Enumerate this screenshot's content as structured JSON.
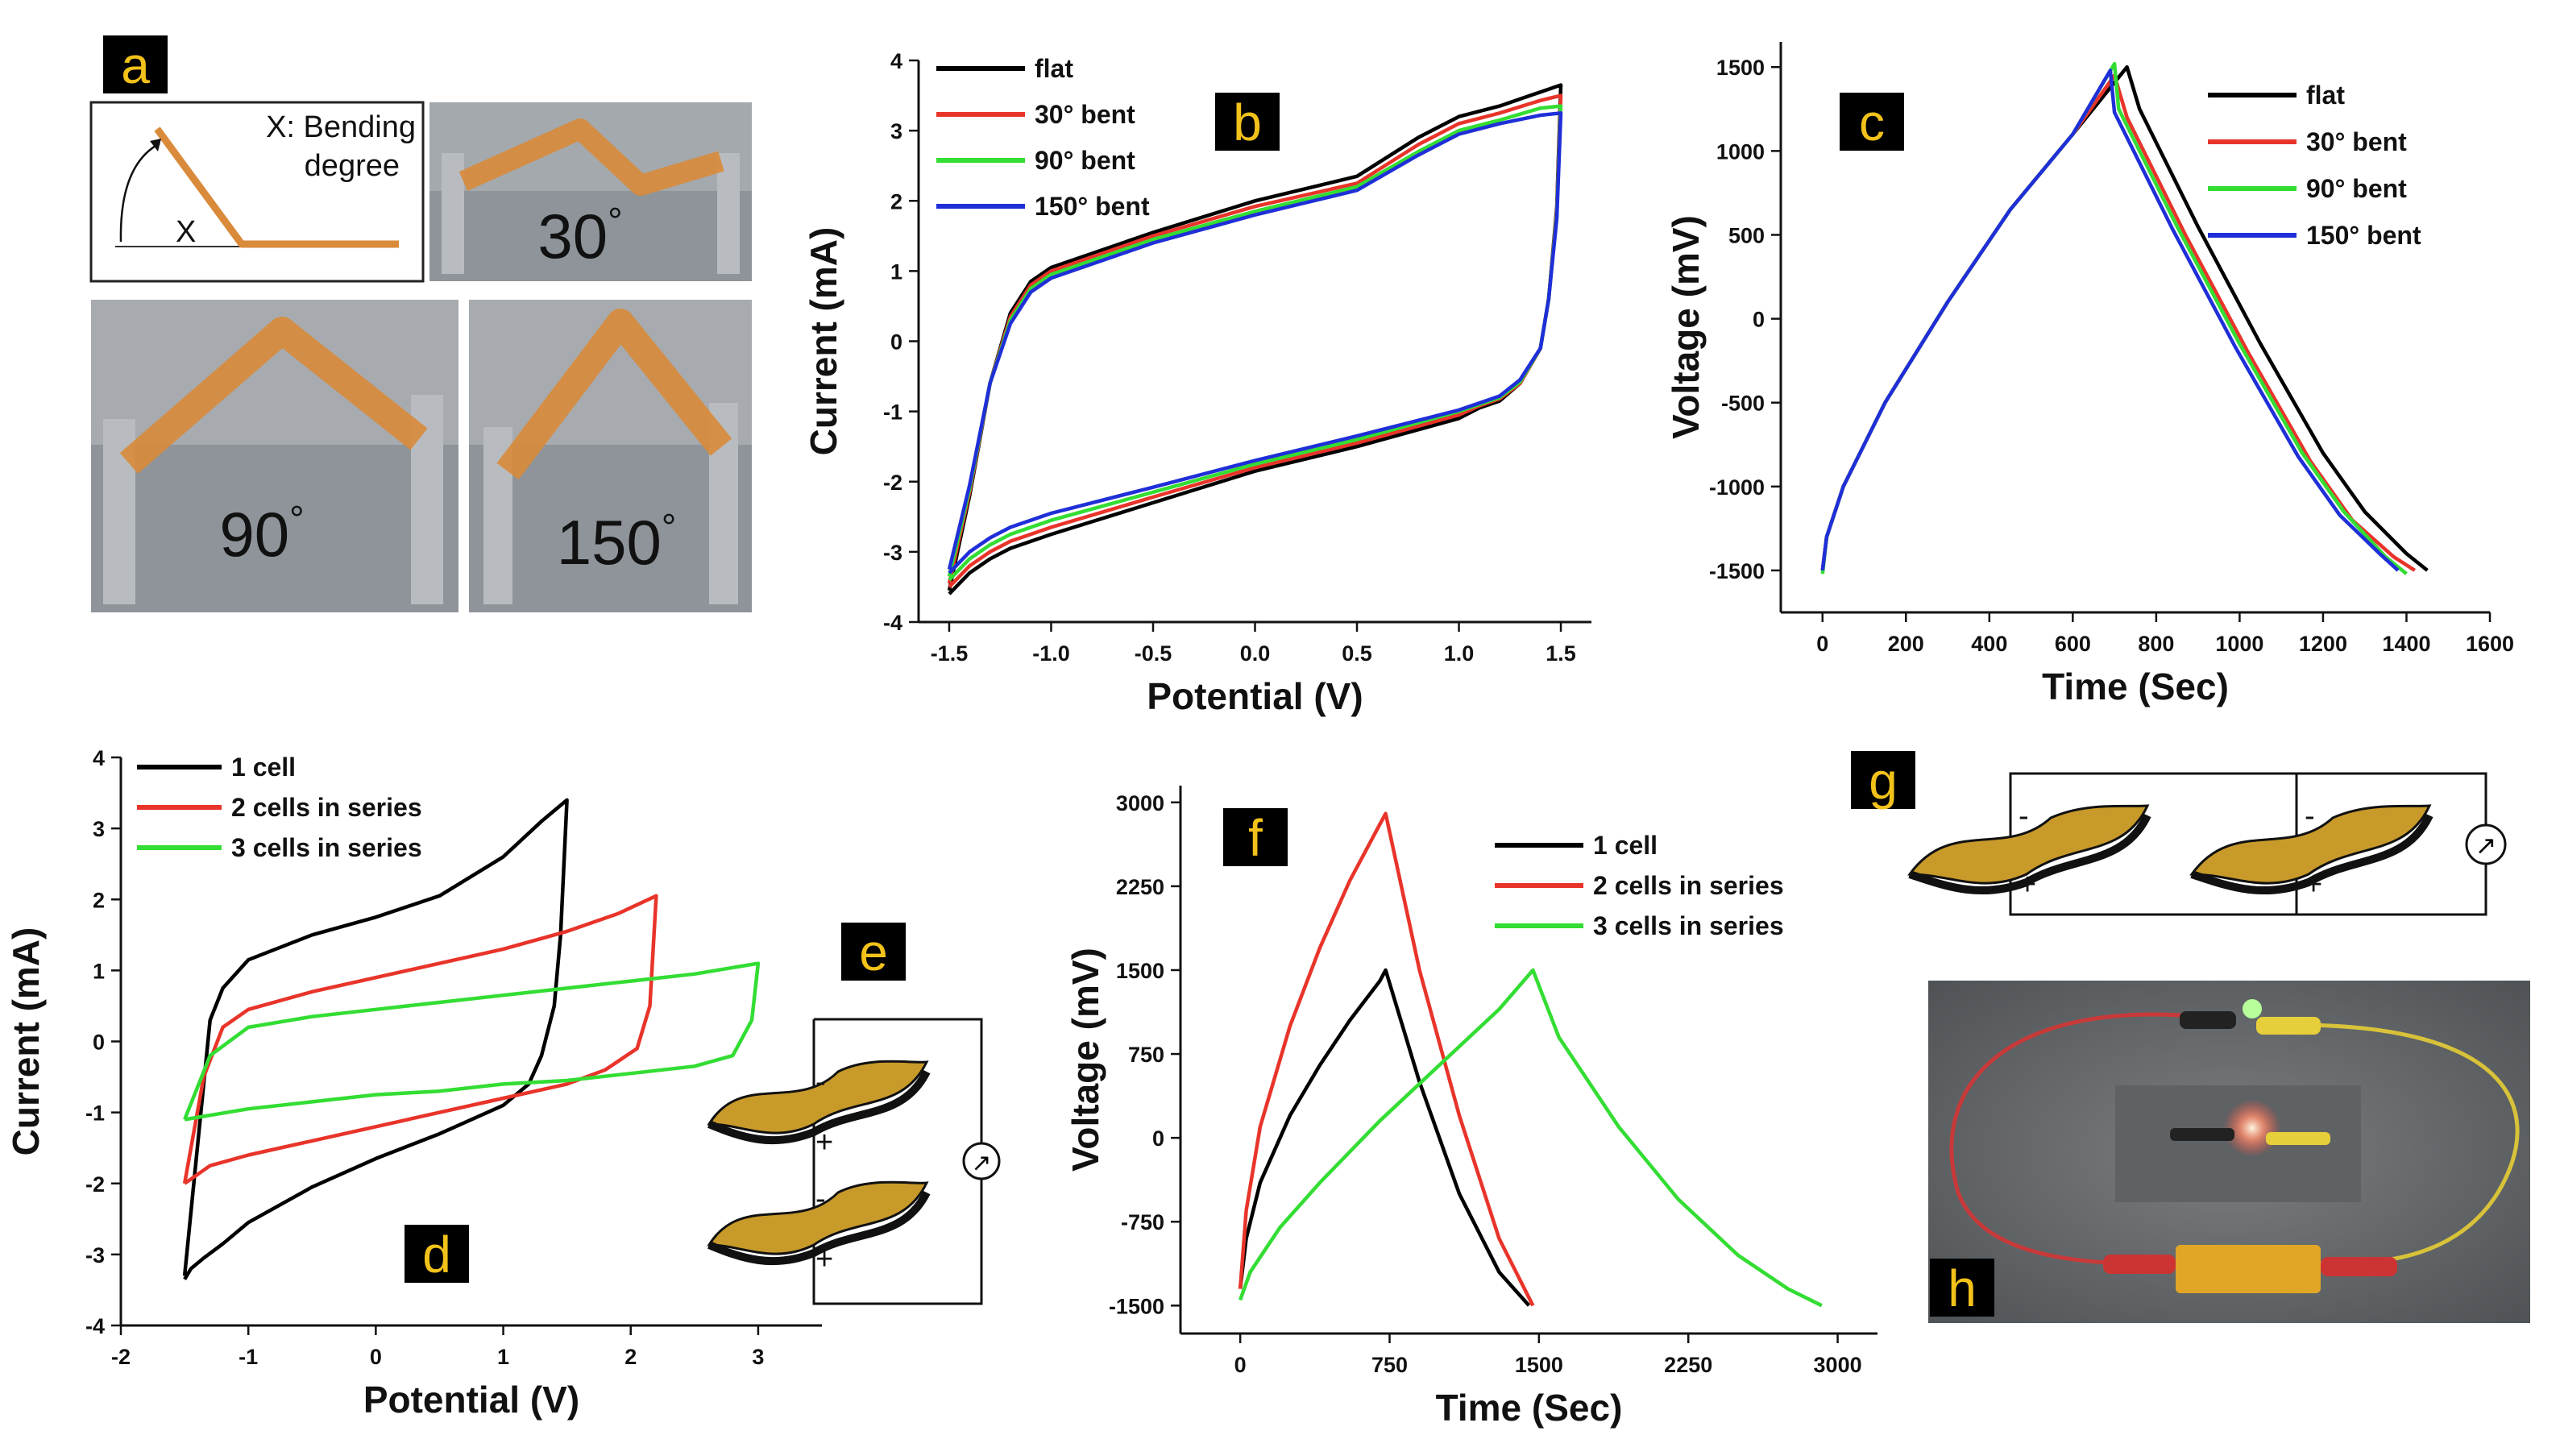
{
  "panel_labels": [
    "a",
    "b",
    "c",
    "d",
    "e",
    "f",
    "g",
    "h"
  ],
  "panel_a": {
    "inset_label": "X: Bending degree",
    "inset_label_line1": "X: Bending",
    "inset_label_line2": "degree",
    "inset_x_symbol": "X",
    "photo_labels": [
      "30",
      "90",
      "150"
    ],
    "degree_symbol": "°",
    "film_color": "#d98a3a"
  },
  "circuit": {
    "minus": "-",
    "plus": "+",
    "meter_symbol": "↗",
    "device_color": "#c89a2a"
  },
  "colors": {
    "black": "#000000",
    "red": "#e8342a",
    "green": "#33dd33",
    "blue": "#1f2fd8",
    "label_bg": "#000000",
    "label_fg": "#f2c21a"
  },
  "chart_data": [
    {
      "id": "b",
      "type": "line",
      "title": "",
      "xlabel": "Potential (V)",
      "ylabel": "Current (mA)",
      "xlim": [
        -1.65,
        1.65
      ],
      "ylim": [
        -4,
        4
      ],
      "xticks": [
        -1.5,
        -1.0,
        -0.5,
        0.0,
        0.5,
        1.0,
        1.5
      ],
      "xtick_labels": [
        "-1.5",
        "-1.0",
        "-0.5",
        "0.0",
        "0.5",
        "1.0",
        "1.5"
      ],
      "yticks": [
        -4,
        -3,
        -2,
        -1,
        0,
        1,
        2,
        3,
        4
      ],
      "ytick_labels": [
        "-4",
        "-3",
        "-2",
        "-1",
        "0",
        "1",
        "2",
        "3",
        "4"
      ],
      "legend_position": "top-left",
      "series": [
        {
          "name": "flat",
          "color": "#000000",
          "x": [
            -1.5,
            -1.4,
            -1.3,
            -1.2,
            -1.1,
            -1.0,
            -0.5,
            0.0,
            0.5,
            0.8,
            1.0,
            1.2,
            1.4,
            1.5,
            1.48,
            1.44,
            1.4,
            1.3,
            1.2,
            1.1,
            1.0,
            0.5,
            0.0,
            -0.5,
            -1.0,
            -1.2,
            -1.3,
            -1.4,
            -1.5
          ],
          "y": [
            -3.55,
            -2.2,
            -0.6,
            0.4,
            0.85,
            1.05,
            1.55,
            2.0,
            2.35,
            2.9,
            3.2,
            3.35,
            3.55,
            3.65,
            1.9,
            0.6,
            -0.1,
            -0.6,
            -0.85,
            -0.95,
            -1.1,
            -1.5,
            -1.85,
            -2.3,
            -2.75,
            -2.95,
            -3.1,
            -3.3,
            -3.6
          ]
        },
        {
          "name": "30° bent",
          "color": "#e8342a",
          "x": [
            -1.5,
            -1.4,
            -1.3,
            -1.2,
            -1.1,
            -1.0,
            -0.5,
            0.0,
            0.5,
            0.8,
            1.0,
            1.2,
            1.4,
            1.5,
            1.48,
            1.44,
            1.4,
            1.3,
            1.2,
            1.1,
            1.0,
            0.5,
            0.0,
            -0.5,
            -1.0,
            -1.2,
            -1.3,
            -1.4,
            -1.5
          ],
          "y": [
            -3.45,
            -2.15,
            -0.6,
            0.35,
            0.8,
            1.0,
            1.5,
            1.92,
            2.25,
            2.8,
            3.1,
            3.25,
            3.43,
            3.5,
            1.85,
            0.6,
            -0.1,
            -0.6,
            -0.82,
            -0.92,
            -1.05,
            -1.45,
            -1.8,
            -2.22,
            -2.65,
            -2.85,
            -3.0,
            -3.2,
            -3.5
          ]
        },
        {
          "name": "90° bent",
          "color": "#33dd33",
          "x": [
            -1.5,
            -1.4,
            -1.3,
            -1.2,
            -1.1,
            -1.0,
            -0.5,
            0.0,
            0.5,
            0.8,
            1.0,
            1.2,
            1.4,
            1.5,
            1.48,
            1.44,
            1.4,
            1.3,
            1.2,
            1.1,
            1.0,
            0.5,
            0.0,
            -0.5,
            -1.0,
            -1.2,
            -1.3,
            -1.4,
            -1.5
          ],
          "y": [
            -3.35,
            -2.1,
            -0.6,
            0.3,
            0.75,
            0.95,
            1.45,
            1.85,
            2.2,
            2.7,
            3.0,
            3.15,
            3.32,
            3.35,
            1.8,
            0.6,
            -0.1,
            -0.58,
            -0.8,
            -0.9,
            -1.0,
            -1.4,
            -1.75,
            -2.15,
            -2.55,
            -2.75,
            -2.9,
            -3.1,
            -3.4
          ]
        },
        {
          "name": "150° bent",
          "color": "#1f2fd8",
          "x": [
            -1.5,
            -1.4,
            -1.3,
            -1.2,
            -1.1,
            -1.0,
            -0.5,
            0.0,
            0.5,
            0.8,
            1.0,
            1.2,
            1.4,
            1.5,
            1.48,
            1.44,
            1.4,
            1.3,
            1.2,
            1.1,
            1.0,
            0.5,
            0.0,
            -0.5,
            -1.0,
            -1.2,
            -1.3,
            -1.4,
            -1.5
          ],
          "y": [
            -3.25,
            -2.05,
            -0.6,
            0.25,
            0.7,
            0.9,
            1.4,
            1.8,
            2.15,
            2.65,
            2.95,
            3.1,
            3.22,
            3.25,
            1.75,
            0.6,
            -0.1,
            -0.55,
            -0.78,
            -0.88,
            -0.98,
            -1.35,
            -1.7,
            -2.08,
            -2.45,
            -2.65,
            -2.8,
            -3.0,
            -3.3
          ]
        }
      ]
    },
    {
      "id": "c",
      "type": "line",
      "title": "",
      "xlabel": "Time (Sec)",
      "ylabel": "Voltage (mV)",
      "xlim": [
        -100,
        1600
      ],
      "ylim": [
        -1750,
        1650
      ],
      "xticks": [
        0,
        200,
        400,
        600,
        800,
        1000,
        1200,
        1400,
        1600
      ],
      "xtick_labels": [
        "0",
        "200",
        "400",
        "600",
        "800",
        "1000",
        "1200",
        "1400",
        "1600"
      ],
      "yticks": [
        -1500,
        -1000,
        -500,
        0,
        500,
        1000,
        1500
      ],
      "ytick_labels": [
        "-1500",
        "-1000",
        "-500",
        "0",
        "500",
        "1000",
        "1500"
      ],
      "legend_position": "top-right",
      "series": [
        {
          "name": "flat",
          "color": "#000000",
          "x": [
            0,
            10,
            50,
            150,
            300,
            450,
            600,
            730,
            760,
            900,
            1050,
            1200,
            1300,
            1400,
            1450
          ],
          "y": [
            -1500,
            -1300,
            -1000,
            -500,
            100,
            650,
            1100,
            1500,
            1250,
            550,
            -150,
            -800,
            -1150,
            -1400,
            -1500
          ]
        },
        {
          "name": "30° bent",
          "color": "#e8342a",
          "x": [
            0,
            10,
            50,
            150,
            300,
            450,
            600,
            700,
            730,
            870,
            1020,
            1170,
            1270,
            1370,
            1420
          ],
          "y": [
            -1500,
            -1300,
            -1000,
            -500,
            100,
            650,
            1100,
            1450,
            1200,
            500,
            -200,
            -850,
            -1200,
            -1420,
            -1500
          ]
        },
        {
          "name": "90° bent",
          "color": "#33dd33",
          "x": [
            0,
            10,
            50,
            150,
            300,
            450,
            600,
            700,
            710,
            850,
            1000,
            1150,
            1250,
            1350,
            1400
          ],
          "y": [
            -1520,
            -1300,
            -1000,
            -500,
            100,
            650,
            1100,
            1520,
            1250,
            550,
            -150,
            -800,
            -1150,
            -1420,
            -1520
          ]
        },
        {
          "name": "150° bent",
          "color": "#1f2fd8",
          "x": [
            0,
            10,
            50,
            150,
            300,
            450,
            600,
            690,
            700,
            840,
            990,
            1140,
            1240,
            1340,
            1380
          ],
          "y": [
            -1500,
            -1300,
            -1000,
            -500,
            100,
            650,
            1100,
            1480,
            1230,
            530,
            -170,
            -820,
            -1170,
            -1410,
            -1500
          ]
        }
      ]
    },
    {
      "id": "d",
      "type": "line",
      "title": "",
      "xlabel": "Potential (V)",
      "ylabel": "Current (mA)",
      "xlim": [
        -2,
        3.5
      ],
      "ylim": [
        -4,
        4
      ],
      "xticks": [
        -2,
        -1,
        0,
        1,
        2,
        3
      ],
      "xtick_labels": [
        "-2",
        "-1",
        "0",
        "1",
        "2",
        "3"
      ],
      "yticks": [
        -4,
        -3,
        -2,
        -1,
        0,
        1,
        2,
        3,
        4
      ],
      "ytick_labels": [
        "-4",
        "-3",
        "-2",
        "-1",
        "0",
        "1",
        "2",
        "3",
        "4"
      ],
      "legend_position": "top-left",
      "series": [
        {
          "name": "1 cell",
          "color": "#000000",
          "x": [
            -1.5,
            -1.4,
            -1.3,
            -1.2,
            -1.0,
            -0.5,
            0.0,
            0.5,
            1.0,
            1.3,
            1.5,
            1.45,
            1.4,
            1.3,
            1.2,
            1.0,
            0.5,
            0.0,
            -0.5,
            -1.0,
            -1.2,
            -1.35,
            -1.45,
            -1.5
          ],
          "y": [
            -3.3,
            -1.5,
            0.3,
            0.75,
            1.15,
            1.5,
            1.75,
            2.05,
            2.6,
            3.1,
            3.4,
            1.5,
            0.5,
            -0.2,
            -0.6,
            -0.9,
            -1.3,
            -1.65,
            -2.05,
            -2.55,
            -2.85,
            -3.05,
            -3.2,
            -3.35
          ]
        },
        {
          "name": "2 cells in series",
          "color": "#e8342a",
          "x": [
            -1.5,
            -1.35,
            -1.2,
            -1.0,
            -0.5,
            0.0,
            0.5,
            1.0,
            1.5,
            1.9,
            2.2,
            2.15,
            2.05,
            1.8,
            1.5,
            1.0,
            0.5,
            0.0,
            -0.5,
            -1.0,
            -1.3,
            -1.5
          ],
          "y": [
            -2.0,
            -0.5,
            0.2,
            0.45,
            0.7,
            0.9,
            1.1,
            1.3,
            1.55,
            1.8,
            2.05,
            0.5,
            -0.1,
            -0.4,
            -0.6,
            -0.8,
            -1.0,
            -1.2,
            -1.4,
            -1.6,
            -1.75,
            -2.0
          ]
        },
        {
          "name": "3 cells in series",
          "color": "#33dd33",
          "x": [
            -1.5,
            -1.3,
            -1.0,
            -0.5,
            0.0,
            0.5,
            1.0,
            1.5,
            2.0,
            2.5,
            3.0,
            2.95,
            2.8,
            2.5,
            2.0,
            1.5,
            1.0,
            0.5,
            0.0,
            -0.5,
            -1.0,
            -1.5
          ],
          "y": [
            -1.1,
            -0.2,
            0.2,
            0.35,
            0.45,
            0.55,
            0.65,
            0.75,
            0.85,
            0.95,
            1.1,
            0.3,
            -0.2,
            -0.35,
            -0.45,
            -0.55,
            -0.6,
            -0.7,
            -0.75,
            -0.85,
            -0.95,
            -1.1
          ]
        }
      ]
    },
    {
      "id": "f",
      "type": "line",
      "title": "",
      "xlabel": "Time (Sec)",
      "ylabel": "Voltage (mV)",
      "xlim": [
        -300,
        3200
      ],
      "ylim": [
        -1750,
        3150
      ],
      "xticks": [
        0,
        750,
        1500,
        2250,
        3000
      ],
      "xtick_labels": [
        "0",
        "750",
        "1500",
        "2250",
        "3000"
      ],
      "yticks": [
        -1500,
        -750,
        0,
        750,
        1500,
        2250,
        3000
      ],
      "ytick_labels": [
        "-1500",
        "-750",
        "0",
        "750",
        "1500",
        "2250",
        "3000"
      ],
      "legend_position": "top-right",
      "series": [
        {
          "name": "1 cell",
          "color": "#000000",
          "x": [
            0,
            30,
            100,
            250,
            400,
            550,
            700,
            730,
            900,
            1100,
            1300,
            1450
          ],
          "y": [
            -1350,
            -900,
            -400,
            200,
            650,
            1050,
            1400,
            1500,
            500,
            -500,
            -1200,
            -1500
          ]
        },
        {
          "name": "2 cells in series",
          "color": "#e8342a",
          "x": [
            0,
            30,
            100,
            250,
            400,
            550,
            700,
            730,
            900,
            1100,
            1300,
            1470
          ],
          "y": [
            -1350,
            -650,
            100,
            1000,
            1700,
            2300,
            2800,
            2900,
            1500,
            200,
            -900,
            -1500
          ]
        },
        {
          "name": "3 cells in series",
          "color": "#33dd33",
          "x": [
            0,
            50,
            200,
            400,
            700,
            1000,
            1300,
            1470,
            1600,
            1900,
            2200,
            2500,
            2750,
            2920
          ],
          "y": [
            -1450,
            -1200,
            -800,
            -400,
            150,
            650,
            1150,
            1500,
            900,
            100,
            -550,
            -1050,
            -1350,
            -1500
          ]
        }
      ]
    }
  ]
}
